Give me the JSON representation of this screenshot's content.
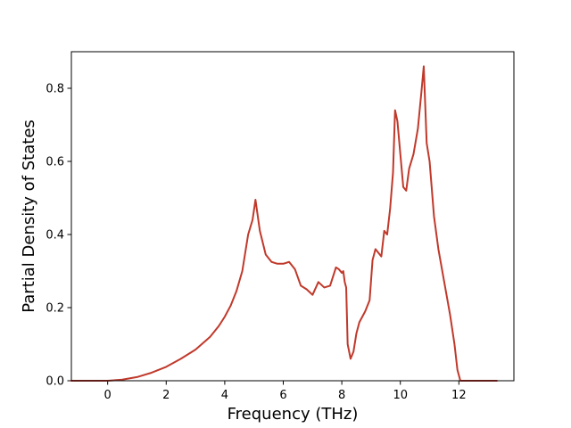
{
  "chart_data": {
    "type": "line",
    "title": "",
    "xlabel": "Frequency (THz)",
    "ylabel": "Partial Density of States",
    "xlim": [
      -1.24,
      13.88
    ],
    "ylim": [
      0.0,
      0.9
    ],
    "xticks": [
      0,
      2,
      4,
      6,
      8,
      10,
      12
    ],
    "xtick_labels": [
      "0",
      "2",
      "4",
      "6",
      "8",
      "10",
      "12"
    ],
    "yticks": [
      0.0,
      0.2,
      0.4,
      0.6,
      0.8
    ],
    "ytick_labels": [
      "0.0",
      "0.2",
      "0.4",
      "0.6",
      "0.8"
    ],
    "grid": false,
    "legend": "none",
    "series": [
      {
        "color": "#c0392b",
        "x": [
          -1.25,
          -0.5,
          0.0,
          0.5,
          1.0,
          1.5,
          2.0,
          2.5,
          3.0,
          3.5,
          3.8,
          4.0,
          4.2,
          4.4,
          4.6,
          4.8,
          4.95,
          5.05,
          5.2,
          5.4,
          5.6,
          5.8,
          6.0,
          6.2,
          6.4,
          6.6,
          6.8,
          7.0,
          7.2,
          7.4,
          7.6,
          7.8,
          7.9,
          8.0,
          8.05,
          8.1,
          8.15,
          8.2,
          8.3,
          8.4,
          8.5,
          8.6,
          8.8,
          8.95,
          9.05,
          9.15,
          9.25,
          9.35,
          9.45,
          9.55,
          9.65,
          9.75,
          9.82,
          9.9,
          10.0,
          10.1,
          10.2,
          10.3,
          10.45,
          10.6,
          10.72,
          10.8,
          10.9,
          11.0,
          11.15,
          11.3,
          11.5,
          11.7,
          11.85,
          11.95,
          12.05,
          12.5,
          13.3
        ],
        "y": [
          0.0,
          0.0,
          0.0,
          0.003,
          0.01,
          0.022,
          0.038,
          0.06,
          0.085,
          0.12,
          0.15,
          0.175,
          0.205,
          0.245,
          0.3,
          0.4,
          0.44,
          0.495,
          0.41,
          0.345,
          0.325,
          0.32,
          0.32,
          0.325,
          0.305,
          0.26,
          0.25,
          0.235,
          0.27,
          0.255,
          0.26,
          0.31,
          0.305,
          0.295,
          0.3,
          0.27,
          0.255,
          0.1,
          0.06,
          0.08,
          0.13,
          0.16,
          0.19,
          0.22,
          0.33,
          0.36,
          0.35,
          0.34,
          0.41,
          0.4,
          0.47,
          0.57,
          0.74,
          0.71,
          0.62,
          0.53,
          0.52,
          0.58,
          0.62,
          0.69,
          0.79,
          0.86,
          0.65,
          0.6,
          0.45,
          0.36,
          0.27,
          0.18,
          0.1,
          0.03,
          0.0,
          0.0,
          0.0
        ]
      }
    ]
  }
}
